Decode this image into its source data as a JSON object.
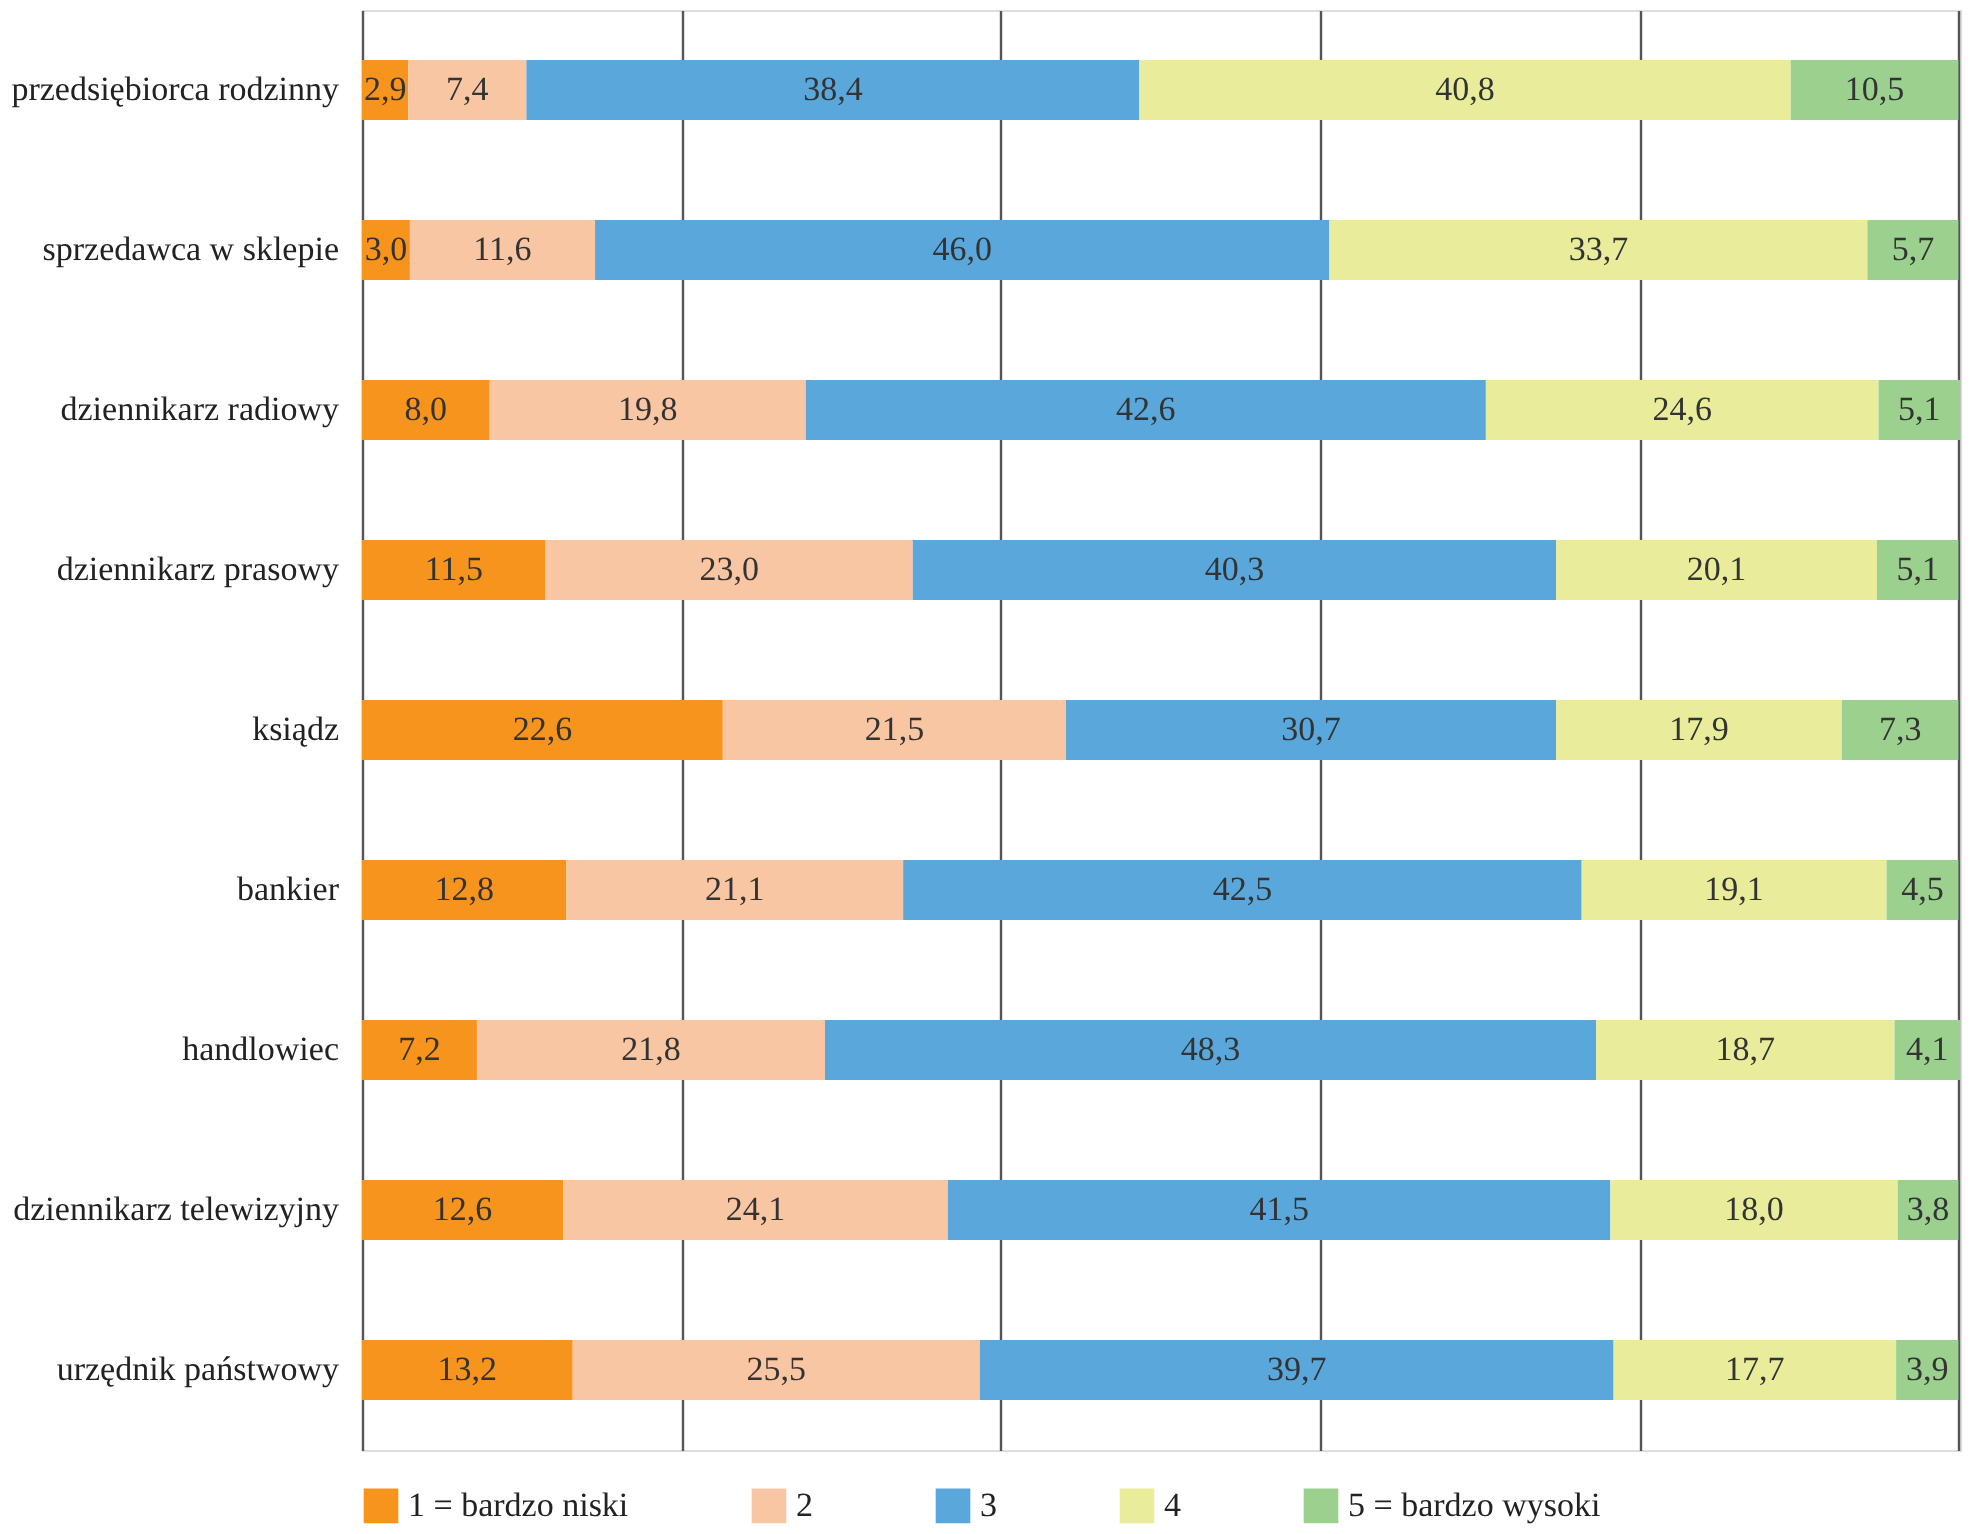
{
  "chart_data": {
    "type": "bar",
    "orientation": "horizontal",
    "stacked": true,
    "grid": "x",
    "legend": "bottom",
    "tick_labels": "y",
    "categories": [
      "przedsiębiorca rodzinny",
      "sprzedawca w sklepie",
      "dziennikarz radiowy",
      "dziennikarz prasowy",
      "ksiądz",
      "bankier",
      "handlowiec",
      "dziennikarz telewizyjny",
      "urzędnik państwowy"
    ],
    "series": [
      {
        "name": "1 = bardzo niski",
        "color": "#f7941d",
        "values": [
          2.9,
          3.0,
          8.0,
          11.5,
          22.6,
          12.8,
          7.2,
          12.6,
          13.2
        ],
        "value_labels": [
          "2,9",
          "3,0",
          "8,0",
          "11,5",
          "22,6",
          "12,8",
          "7,2",
          "12,6",
          "13,2"
        ]
      },
      {
        "name": "2",
        "color": "#f9c6a3",
        "values": [
          7.4,
          11.6,
          19.8,
          23.0,
          21.5,
          21.1,
          21.8,
          24.1,
          25.5
        ],
        "value_labels": [
          "7,4",
          "11,6",
          "19,8",
          "23,0",
          "21,5",
          "21,1",
          "21,8",
          "24,1",
          "25,5"
        ]
      },
      {
        "name": "3",
        "color": "#5aa7dc",
        "values": [
          38.4,
          46.0,
          42.6,
          40.3,
          30.7,
          42.5,
          48.3,
          41.5,
          39.7
        ],
        "value_labels": [
          "38,4",
          "46,0",
          "42,6",
          "40,3",
          "30,7",
          "42,5",
          "48,3",
          "41,5",
          "39,7"
        ]
      },
      {
        "name": "4",
        "color": "#e8ec9b",
        "values": [
          40.8,
          33.7,
          24.6,
          20.1,
          17.9,
          19.1,
          18.7,
          18.0,
          17.7
        ],
        "value_labels": [
          "40,8",
          "33,7",
          "24,6",
          "20,1",
          "17,9",
          "19,1",
          "18,7",
          "18,0",
          "17,7"
        ]
      },
      {
        "name": "5 = bardzo wysoki",
        "color": "#9bd08f",
        "values": [
          10.5,
          5.7,
          5.1,
          5.1,
          7.3,
          4.5,
          4.1,
          3.8,
          3.9
        ],
        "value_labels": [
          "10,5",
          "5,7",
          "5,1",
          "5,1",
          "7,3",
          "4,5",
          "4,1",
          "3,8",
          "3,9"
        ]
      }
    ]
  }
}
